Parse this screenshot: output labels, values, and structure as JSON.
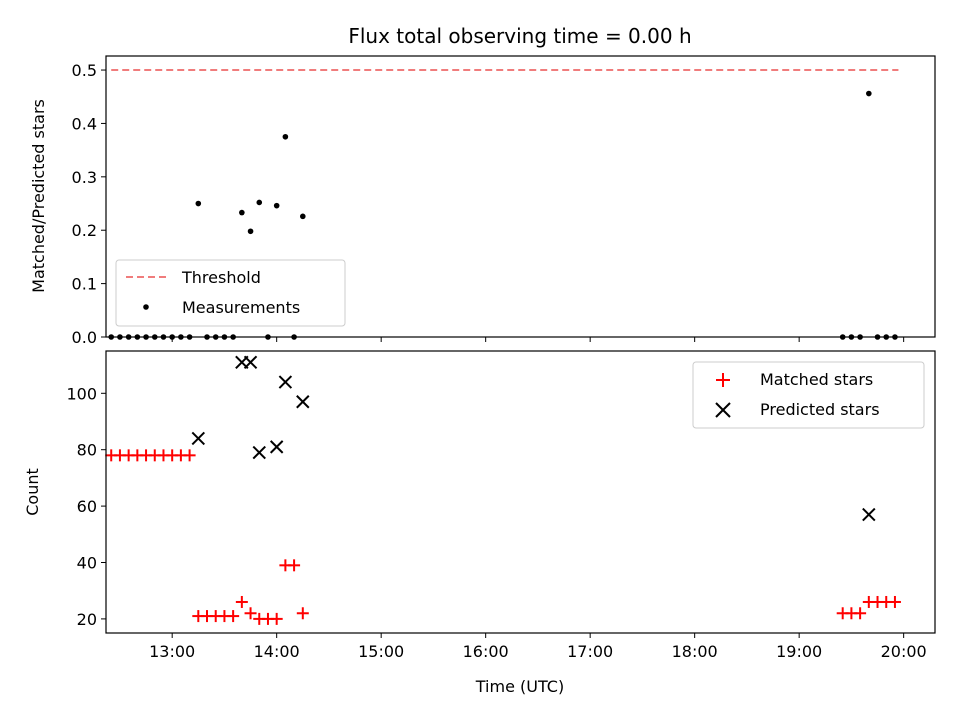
{
  "chart_data": [
    {
      "type": "scatter",
      "title": "Flux total observing time = 0.00 h",
      "ylabel": "Matched/Predicted stars",
      "xlabel": "",
      "xlim": [
        "12:22",
        "20:18"
      ],
      "ylim": [
        0,
        0.5263
      ],
      "yticks": [
        "0.0",
        "0.1",
        "0.2",
        "0.3",
        "0.4",
        "0.5"
      ],
      "legend_location": "lower-left",
      "grid": false,
      "threshold": {
        "name": "Threshold",
        "value": 0.5,
        "x_from": "12:25",
        "x_to": "19:57",
        "color": "#f07c7c"
      },
      "series": [
        {
          "name": "Measurements",
          "color": "#000000",
          "points": [
            {
              "t": "12:25",
              "v": 0
            },
            {
              "t": "12:30",
              "v": 0
            },
            {
              "t": "12:35",
              "v": 0
            },
            {
              "t": "12:40",
              "v": 0
            },
            {
              "t": "12:45",
              "v": 0
            },
            {
              "t": "12:50",
              "v": 0
            },
            {
              "t": "12:55",
              "v": 0
            },
            {
              "t": "13:00",
              "v": 0
            },
            {
              "t": "13:05",
              "v": 0
            },
            {
              "t": "13:10",
              "v": 0
            },
            {
              "t": "13:15",
              "v": 0.25
            },
            {
              "t": "13:20",
              "v": 0
            },
            {
              "t": "13:25",
              "v": 0
            },
            {
              "t": "13:30",
              "v": 0
            },
            {
              "t": "13:35",
              "v": 0
            },
            {
              "t": "13:40",
              "v": 0.233
            },
            {
              "t": "13:45",
              "v": 0.198
            },
            {
              "t": "13:50",
              "v": 0.252
            },
            {
              "t": "13:55",
              "v": 0
            },
            {
              "t": "14:00",
              "v": 0.246
            },
            {
              "t": "14:05",
              "v": 0.375
            },
            {
              "t": "14:10",
              "v": 0
            },
            {
              "t": "14:15",
              "v": 0.226
            },
            {
              "t": "19:25",
              "v": 0
            },
            {
              "t": "19:30",
              "v": 0
            },
            {
              "t": "19:35",
              "v": 0
            },
            {
              "t": "19:40",
              "v": 0.456
            },
            {
              "t": "19:45",
              "v": 0
            },
            {
              "t": "19:50",
              "v": 0
            },
            {
              "t": "19:55",
              "v": 0
            }
          ]
        }
      ]
    },
    {
      "type": "scatter",
      "title": "",
      "xlabel": "Time (UTC)",
      "ylabel": "Count",
      "xlim": [
        "12:22",
        "20:18"
      ],
      "ylim": [
        15,
        115
      ],
      "xticks": [
        "13:00",
        "14:00",
        "15:00",
        "16:00",
        "17:00",
        "18:00",
        "19:00",
        "20:00"
      ],
      "yticks": [
        "20",
        "40",
        "60",
        "80",
        "100"
      ],
      "legend_location": "top-right",
      "grid": false,
      "series": [
        {
          "name": "Matched stars",
          "marker": "plus",
          "color": "#ff0000",
          "points": [
            {
              "t": "12:25",
              "v": 78
            },
            {
              "t": "12:30",
              "v": 78
            },
            {
              "t": "12:35",
              "v": 78
            },
            {
              "t": "12:40",
              "v": 78
            },
            {
              "t": "12:45",
              "v": 78
            },
            {
              "t": "12:50",
              "v": 78
            },
            {
              "t": "12:55",
              "v": 78
            },
            {
              "t": "13:00",
              "v": 78
            },
            {
              "t": "13:05",
              "v": 78
            },
            {
              "t": "13:10",
              "v": 78
            },
            {
              "t": "13:15",
              "v": 21
            },
            {
              "t": "13:20",
              "v": 21
            },
            {
              "t": "13:25",
              "v": 21
            },
            {
              "t": "13:30",
              "v": 21
            },
            {
              "t": "13:35",
              "v": 21
            },
            {
              "t": "13:40",
              "v": 26
            },
            {
              "t": "13:45",
              "v": 22
            },
            {
              "t": "13:50",
              "v": 20
            },
            {
              "t": "13:55",
              "v": 20
            },
            {
              "t": "14:00",
              "v": 20
            },
            {
              "t": "14:05",
              "v": 39
            },
            {
              "t": "14:10",
              "v": 39
            },
            {
              "t": "14:15",
              "v": 22
            },
            {
              "t": "19:25",
              "v": 22
            },
            {
              "t": "19:30",
              "v": 22
            },
            {
              "t": "19:35",
              "v": 22
            },
            {
              "t": "19:40",
              "v": 26
            },
            {
              "t": "19:45",
              "v": 26
            },
            {
              "t": "19:50",
              "v": 26
            },
            {
              "t": "19:55",
              "v": 26
            }
          ]
        },
        {
          "name": "Predicted stars",
          "marker": "x",
          "color": "#000000",
          "points": [
            {
              "t": "13:15",
              "v": 84
            },
            {
              "t": "13:40",
              "v": 111
            },
            {
              "t": "13:45",
              "v": 111
            },
            {
              "t": "13:50",
              "v": 79
            },
            {
              "t": "14:00",
              "v": 81
            },
            {
              "t": "14:05",
              "v": 104
            },
            {
              "t": "14:15",
              "v": 97
            },
            {
              "t": "19:40",
              "v": 57
            }
          ]
        }
      ]
    }
  ]
}
